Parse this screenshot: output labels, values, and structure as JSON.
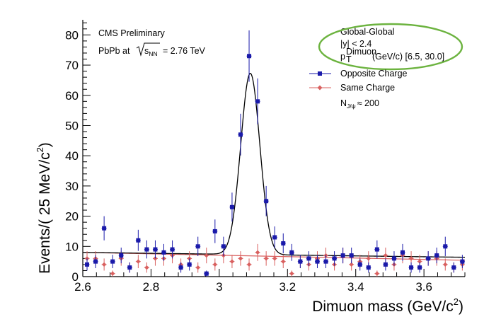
{
  "chart_data": {
    "type": "scatter",
    "title": "",
    "xlabel": "Dimuon mass (GeV/c",
    "xlabel_sup": "2",
    "xlabel_close": ")",
    "ylabel": "Events/( 25 MeV/c",
    "ylabel_sup": "2",
    "ylabel_close": ")",
    "xlim": [
      2.6,
      3.72
    ],
    "ylim": [
      0,
      85
    ],
    "x_ticks": [
      2.6,
      2.8,
      3.0,
      3.2,
      3.4,
      3.6
    ],
    "x_tick_labels": [
      "2.6",
      "2.8",
      "3",
      "3.2",
      "3.4",
      "3.6"
    ],
    "y_ticks": [
      0,
      10,
      20,
      30,
      40,
      50,
      60,
      70,
      80
    ],
    "y_tick_labels": [
      "0",
      "10",
      "20",
      "30",
      "40",
      "50",
      "60",
      "70",
      "80"
    ],
    "annotations": {
      "experiment": "CMS Preliminary",
      "system": "PbPb at",
      "sqrt_s": "s",
      "sqrt_sub": "NN",
      "energy": "= 2.76 TeV",
      "reco": "Global-Global",
      "rapidity": "|y| < 2.4",
      "pt_p": "p",
      "pt_sub": "T",
      "pt_sup": "Dimuon",
      "pt_range": "(GeV/c) [6.5, 30.0]",
      "n_label": "N",
      "n_sub": "J/ψ",
      "n_value": "≈ 200"
    },
    "legend_position": "top-right",
    "colors": {
      "opposite": "#1a1aaa",
      "same": "#d9605f",
      "fit_opposite": "#000000",
      "fit_same": "#d9605f",
      "highlight": "#6cb33f"
    },
    "fit": {
      "mean": 3.091,
      "sigma": 0.028,
      "amplitude": 60,
      "bkg_at_xmin": 8.0,
      "bkg_at_xmax": 6.4,
      "same_at_xmin": 8.0,
      "same_at_xmax": 5.4
    },
    "series": [
      {
        "name": "Opposite Charge",
        "marker": "square",
        "x": [
          2.6125,
          2.6375,
          2.6625,
          2.6875,
          2.7125,
          2.7375,
          2.7625,
          2.7875,
          2.8125,
          2.8375,
          2.8625,
          2.8875,
          2.9125,
          2.9375,
          2.9625,
          2.9875,
          3.0125,
          3.0375,
          3.0625,
          3.0875,
          3.1125,
          3.1375,
          3.1625,
          3.1875,
          3.2125,
          3.2375,
          3.2625,
          3.2875,
          3.3125,
          3.3375,
          3.3625,
          3.3875,
          3.4125,
          3.4375,
          3.4625,
          3.4875,
          3.5125,
          3.5375,
          3.5625,
          3.5875,
          3.6125,
          3.6375,
          3.6625,
          3.6875,
          3.7125
        ],
        "y": [
          4,
          5,
          16,
          5,
          7,
          3,
          12,
          9,
          9,
          8,
          9,
          3,
          4,
          10,
          1,
          15,
          10,
          23,
          47,
          73,
          58,
          25,
          13,
          11,
          8,
          5,
          6,
          5,
          5,
          6,
          7,
          7,
          4,
          3,
          9,
          4,
          6,
          8,
          3,
          3,
          6,
          7,
          10,
          3,
          5
        ],
        "err": [
          2,
          2.2,
          4,
          2.2,
          2.6,
          1.7,
          3.5,
          3,
          3,
          2.8,
          3,
          1.7,
          2,
          3.2,
          1,
          3.9,
          3.2,
          4.8,
          6.9,
          8.5,
          7.6,
          5,
          3.6,
          3.3,
          2.8,
          2.2,
          2.4,
          2.2,
          2.2,
          2.4,
          2.6,
          2.6,
          2,
          1.7,
          3,
          2,
          2.4,
          2.8,
          1.7,
          1.7,
          2.4,
          2.6,
          3.2,
          1.7,
          2.2
        ]
      },
      {
        "name": "Same Charge",
        "marker": "diamond",
        "x": [
          2.6125,
          2.6375,
          2.6625,
          2.6875,
          2.7125,
          2.7375,
          2.7625,
          2.7875,
          2.8125,
          2.8375,
          2.8625,
          2.8875,
          2.9125,
          2.9375,
          2.9625,
          2.9875,
          3.0125,
          3.0375,
          3.0625,
          3.0875,
          3.1125,
          3.1375,
          3.1625,
          3.1875,
          3.2125,
          3.2375,
          3.2625,
          3.2875,
          3.3125,
          3.3375,
          3.3625,
          3.3875,
          3.4125,
          3.4375,
          3.4625,
          3.4875,
          3.5125,
          3.5375,
          3.5625,
          3.5875,
          3.6125,
          3.6375,
          3.6625,
          3.6875,
          3.7125
        ],
        "y": [
          6,
          6,
          4,
          1,
          6,
          3,
          5,
          3,
          6,
          6,
          7,
          4,
          6,
          3,
          7,
          4,
          7,
          5,
          6,
          4,
          8,
          6,
          6,
          5,
          1,
          5,
          4,
          6,
          7,
          4,
          7,
          4,
          5,
          6,
          1,
          7,
          4,
          7,
          6,
          5,
          6,
          6,
          4,
          3,
          4
        ],
        "err": [
          2.4,
          2.4,
          2,
          1,
          2.4,
          1.7,
          2.2,
          1.7,
          2.4,
          2.4,
          2.6,
          2,
          2.4,
          1.7,
          2.6,
          2,
          2.6,
          2.2,
          2.4,
          2,
          2.8,
          2.4,
          2.4,
          2.2,
          1,
          2.2,
          2,
          2.4,
          2.6,
          2,
          2.6,
          2,
          2.2,
          2.4,
          1,
          2.6,
          2,
          2.6,
          2.4,
          2.2,
          2.4,
          2.4,
          2,
          1.7,
          2
        ]
      }
    ]
  }
}
